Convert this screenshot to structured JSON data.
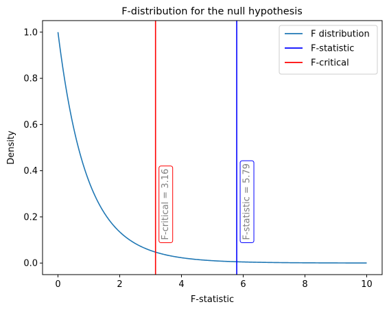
{
  "chart_data": {
    "type": "line",
    "title": "F-distribution for the null hypothesis",
    "xlabel": "F-statistic",
    "ylabel": "Density",
    "xlim": [
      -0.5,
      10.5
    ],
    "ylim": [
      -0.05,
      1.05
    ],
    "xticks": [
      0,
      2,
      4,
      6,
      8,
      10
    ],
    "yticks": [
      0.0,
      0.2,
      0.4,
      0.6,
      0.8,
      1.0
    ],
    "grid": false,
    "legend_placement": "top-right",
    "distribution": {
      "dfn": 2,
      "dfd": 27,
      "x_range": [
        0,
        10
      ]
    },
    "series": [
      {
        "name": "F distribution",
        "kind": "curve",
        "color": "#1f77b4"
      },
      {
        "name": "F-statistic",
        "kind": "vline",
        "x": 5.79,
        "color": "#0000ff"
      },
      {
        "name": "F-critical",
        "kind": "vline",
        "x": 3.16,
        "color": "#ff0000"
      }
    ],
    "annotations": [
      {
        "text": "F-critical = 3.16",
        "x": 3.16,
        "y_bottom": 0.1,
        "color": "#ff0000"
      },
      {
        "text": "F-statistic = 5.79",
        "x": 5.79,
        "y_bottom": 0.1,
        "color": "#0000ff"
      }
    ]
  }
}
